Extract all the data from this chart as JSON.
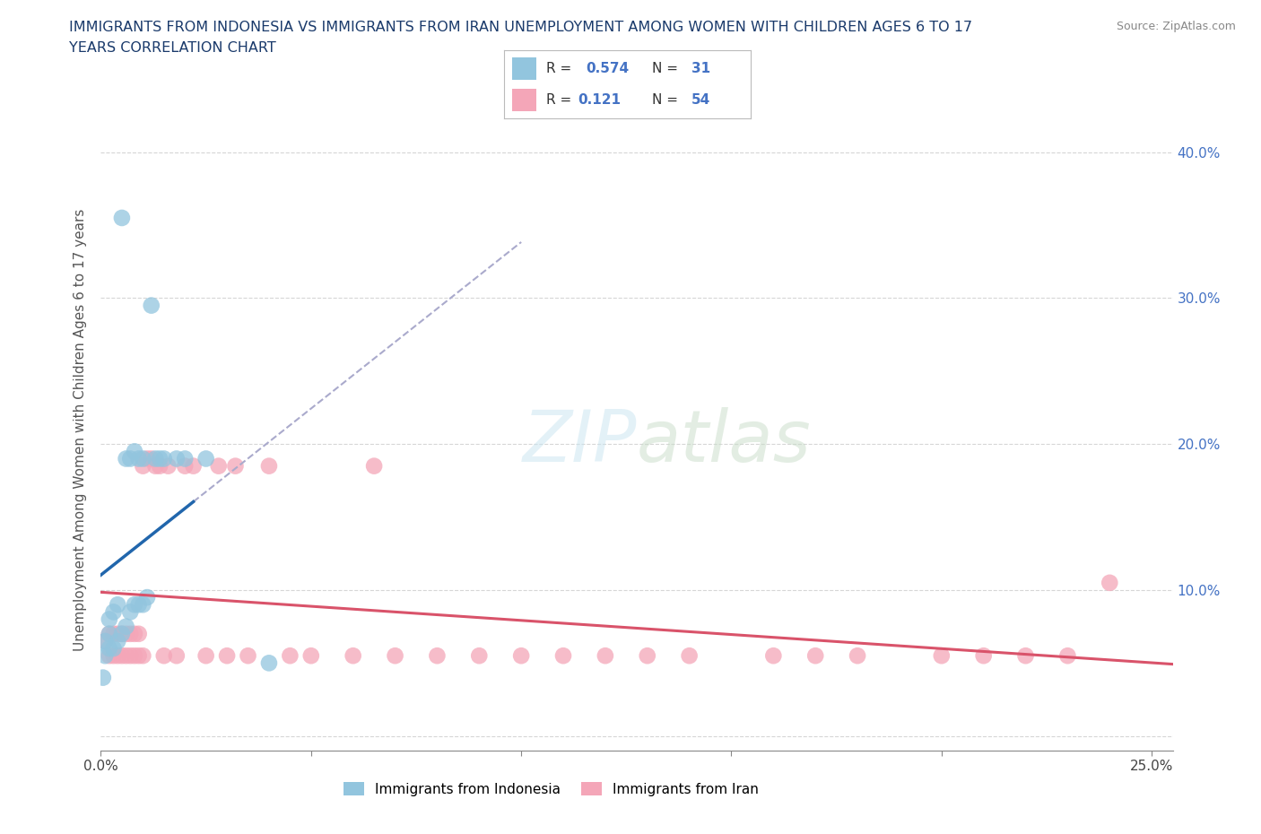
{
  "title_line1": "IMMIGRANTS FROM INDONESIA VS IMMIGRANTS FROM IRAN UNEMPLOYMENT AMONG WOMEN WITH CHILDREN AGES 6 TO 17",
  "title_line2": "YEARS CORRELATION CHART",
  "source": "Source: ZipAtlas.com",
  "ylabel": "Unemployment Among Women with Children Ages 6 to 17 years",
  "xlim": [
    0.0,
    0.255
  ],
  "ylim": [
    -0.01,
    0.43
  ],
  "indonesia_color": "#92C5DE",
  "iran_color": "#F4A6B8",
  "indonesia_line_color": "#2166AC",
  "iran_line_color": "#D9536A",
  "R_indonesia": 0.574,
  "N_indonesia": 31,
  "R_iran": 0.121,
  "N_iran": 54,
  "watermark": "ZIPatlas",
  "indonesia_x": [
    0.001,
    0.002,
    0.002,
    0.003,
    0.003,
    0.004,
    0.004,
    0.004,
    0.005,
    0.005,
    0.005,
    0.006,
    0.006,
    0.006,
    0.007,
    0.007,
    0.008,
    0.008,
    0.009,
    0.009,
    0.01,
    0.01,
    0.011,
    0.012,
    0.013,
    0.014,
    0.015,
    0.016,
    0.018,
    0.022,
    0.04
  ],
  "indonesia_y": [
    0.035,
    0.065,
    0.075,
    0.05,
    0.06,
    0.06,
    0.07,
    0.085,
    0.065,
    0.085,
    0.355,
    0.075,
    0.09,
    0.18,
    0.09,
    0.195,
    0.09,
    0.19,
    0.09,
    0.19,
    0.09,
    0.19,
    0.09,
    0.19,
    0.19,
    0.295,
    0.19,
    0.19,
    0.19,
    0.19,
    0.05
  ],
  "iran_x": [
    0.001,
    0.002,
    0.003,
    0.003,
    0.004,
    0.004,
    0.005,
    0.005,
    0.006,
    0.006,
    0.007,
    0.007,
    0.008,
    0.008,
    0.009,
    0.009,
    0.01,
    0.01,
    0.011,
    0.012,
    0.013,
    0.014,
    0.015,
    0.015,
    0.016,
    0.018,
    0.02,
    0.022,
    0.025,
    0.025,
    0.03,
    0.03,
    0.035,
    0.04,
    0.045,
    0.05,
    0.06,
    0.065,
    0.07,
    0.08,
    0.09,
    0.1,
    0.11,
    0.12,
    0.13,
    0.14,
    0.16,
    0.17,
    0.18,
    0.19,
    0.2,
    0.21,
    0.23,
    0.24
  ],
  "iran_y": [
    0.065,
    0.065,
    0.055,
    0.075,
    0.055,
    0.075,
    0.055,
    0.065,
    0.055,
    0.075,
    0.055,
    0.07,
    0.055,
    0.075,
    0.055,
    0.075,
    0.055,
    0.18,
    0.19,
    0.19,
    0.19,
    0.185,
    0.055,
    0.185,
    0.185,
    0.055,
    0.185,
    0.185,
    0.055,
    0.175,
    0.055,
    0.175,
    0.055,
    0.175,
    0.055,
    0.055,
    0.055,
    0.175,
    0.055,
    0.055,
    0.055,
    0.055,
    0.055,
    0.055,
    0.055,
    0.055,
    0.055,
    0.055,
    0.055,
    0.055,
    0.055,
    0.055,
    0.055,
    0.105
  ]
}
